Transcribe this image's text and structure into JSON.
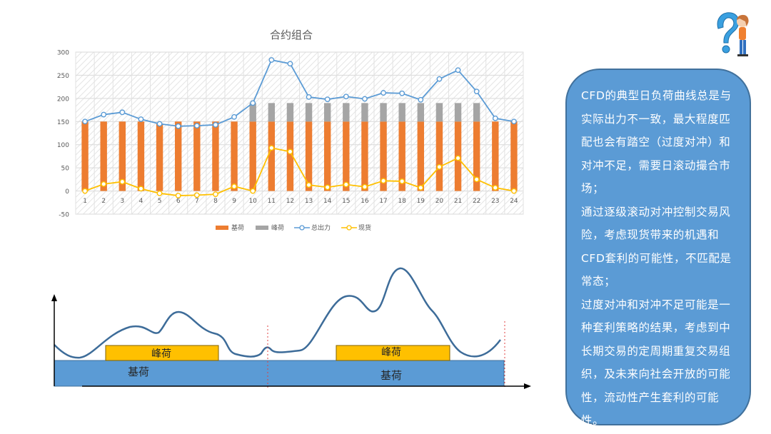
{
  "chart_data": {
    "type": "bar+line",
    "title": "合约组合",
    "categories": [
      "1",
      "2",
      "3",
      "4",
      "5",
      "6",
      "7",
      "8",
      "9",
      "10",
      "11",
      "12",
      "13",
      "14",
      "15",
      "16",
      "17",
      "18",
      "19",
      "20",
      "21",
      "22",
      "23",
      "24"
    ],
    "ylim": [
      -50,
      300
    ],
    "yticks": [
      -50,
      0,
      50,
      100,
      150,
      200,
      250,
      300
    ],
    "stacked_bars": true,
    "grid": true,
    "legend_position": "bottom",
    "series": [
      {
        "name": "基荷",
        "kind": "bar",
        "color": "#ed7d31",
        "values": [
          150,
          150,
          150,
          150,
          145,
          150,
          150,
          150,
          150,
          150,
          150,
          150,
          150,
          150,
          150,
          150,
          150,
          150,
          150,
          150,
          150,
          150,
          150,
          150
        ]
      },
      {
        "name": "峰荷",
        "kind": "bar",
        "color": "#a5a5a5",
        "values": [
          0,
          0,
          0,
          0,
          0,
          0,
          0,
          0,
          0,
          40,
          40,
          40,
          40,
          40,
          40,
          40,
          40,
          40,
          40,
          40,
          40,
          40,
          0,
          0
        ]
      },
      {
        "name": "总出力",
        "kind": "line",
        "color": "#5b9bd5",
        "values": [
          150,
          165,
          170,
          155,
          145,
          140,
          141,
          143,
          160,
          190,
          283,
          275,
          203,
          198,
          204,
          199,
          212,
          211,
          197,
          242,
          261,
          215,
          157,
          150
        ]
      },
      {
        "name": "现货",
        "kind": "line",
        "color": "#ffc000",
        "values": [
          0,
          15,
          20,
          5,
          -5,
          -10,
          -9,
          -7,
          10,
          0,
          93,
          85,
          13,
          8,
          14,
          9,
          22,
          21,
          7,
          52,
          71,
          25,
          7,
          0
        ]
      }
    ]
  },
  "diagram": {
    "peak_label": "峰荷",
    "base_label": "基荷",
    "colors": {
      "peak": "#ffc000",
      "base": "#5b9bd5",
      "curve": "#3d6c99",
      "divider": "#e04040"
    }
  },
  "callout": {
    "paragraphs": [
      "CFD的典型日负荷曲线总是与实际出力不一致，最大程度匹配也会有踏空（过度对冲）和对冲不足，需要日滚动撮合市场；",
      "通过逐级滚动对冲控制交易风险，考虑现货带来的机遇和CFD套利的可能性，不匹配是常态；",
      "过度对冲和对冲不足可能是一种套利策略的结果，考虑到中长期交易的定周期重复交易组织，及未来向社会开放的可能性，流动性产生套利的可能性。"
    ],
    "colors": {
      "fill": "#5b9bd5",
      "text": "#ffffff"
    }
  },
  "mascot": {
    "icon": "question-mark-person-icon"
  }
}
